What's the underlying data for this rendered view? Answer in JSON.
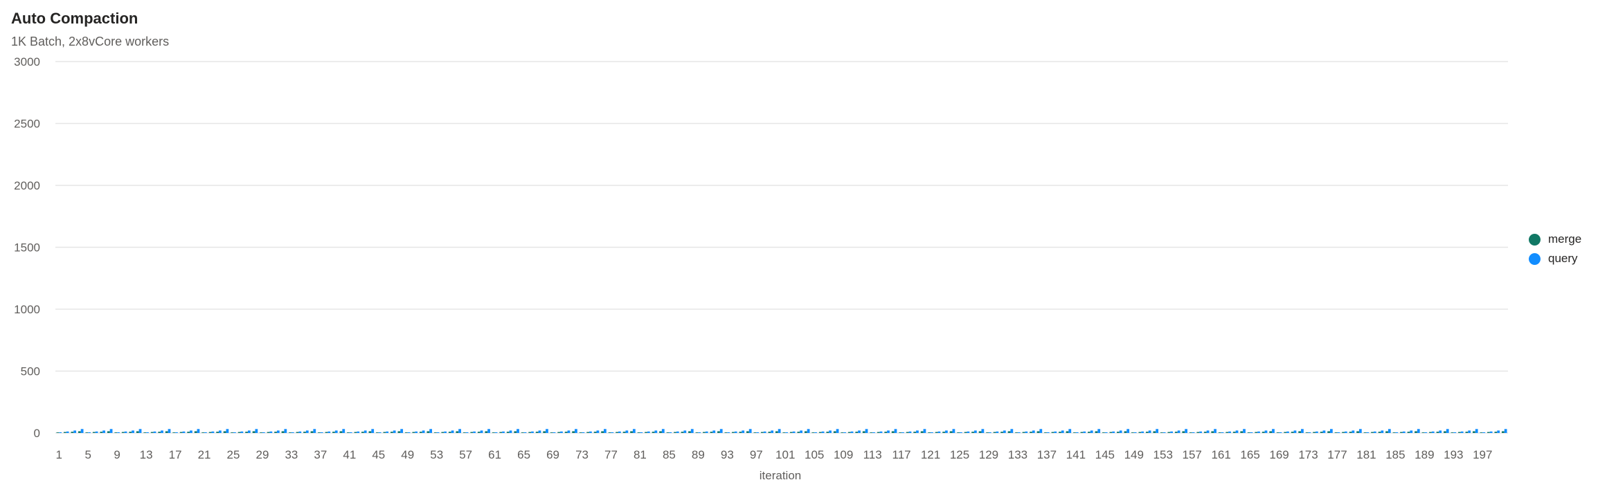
{
  "chart_data": {
    "type": "bar",
    "title": "Auto Compaction",
    "subtitle": "1K Batch, 2x8vCore workers",
    "xlabel": "iteration",
    "ylabel": "",
    "ylim": [
      0,
      3000
    ],
    "yticks": [
      0,
      500,
      1000,
      1500,
      2000,
      2500,
      3000
    ],
    "x_start": 1,
    "x_end": 200,
    "x_tick_step": 4,
    "grid": true,
    "legend_position": "right",
    "series": [
      {
        "name": "merge",
        "color": "#117865",
        "pattern_values": [
          5,
          8,
          10,
          14
        ]
      },
      {
        "name": "query",
        "color": "#118dff",
        "pattern_values": [
          6,
          12,
          20,
          32
        ]
      }
    ]
  }
}
